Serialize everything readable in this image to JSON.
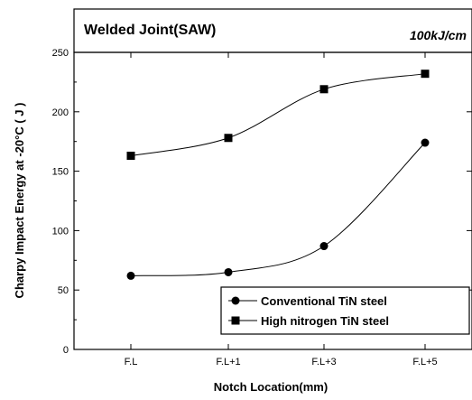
{
  "chart_data": {
    "type": "line",
    "title": "Welded Joint(SAW)",
    "subtitle": "100kJ/cm",
    "xlabel": "Notch Location(mm)",
    "ylabel": "Charpy Impact Energy at -20°C ( J )",
    "categories": [
      "F.L",
      "F.L+1",
      "F.L+3",
      "F.L+5"
    ],
    "ylim": [
      0,
      250
    ],
    "yticks": [
      0,
      50,
      100,
      150,
      200,
      250
    ],
    "grid": false,
    "legend_position": "bottom-right",
    "series": [
      {
        "name": "Conventional TiN steel",
        "marker": "circle",
        "values": [
          62,
          65,
          87,
          174
        ]
      },
      {
        "name": "High nitrogen TiN steel",
        "marker": "square",
        "values": [
          163,
          178,
          219,
          232
        ]
      }
    ]
  }
}
